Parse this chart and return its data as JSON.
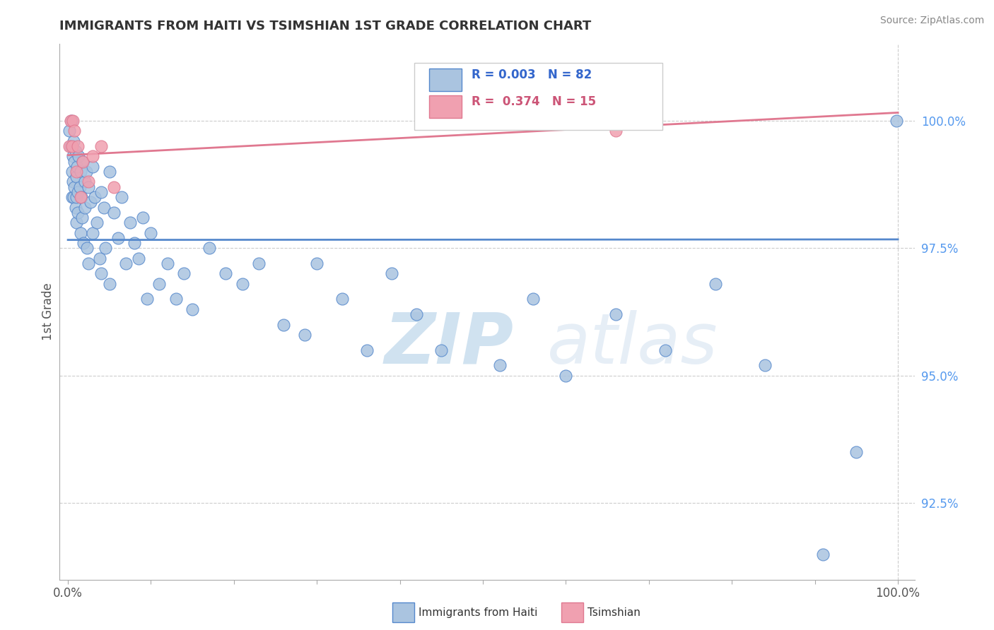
{
  "title": "IMMIGRANTS FROM HAITI VS TSIMSHIAN 1ST GRADE CORRELATION CHART",
  "source": "Source: ZipAtlas.com",
  "xlabel_haiti": "Immigrants from Haiti",
  "xlabel_tsimshian": "Tsimshian",
  "ylabel": "1st Grade",
  "xlim": [
    -1.0,
    102.0
  ],
  "ylim": [
    91.0,
    101.5
  ],
  "yticks": [
    92.5,
    95.0,
    97.5,
    100.0
  ],
  "xticks": [
    0.0,
    10.0,
    20.0,
    30.0,
    40.0,
    50.0,
    60.0,
    70.0,
    80.0,
    90.0,
    100.0
  ],
  "xtick_labels": [
    "0.0%",
    "",
    "",
    "",
    "",
    "",
    "",
    "",
    "",
    "",
    "100.0%"
  ],
  "ytick_labels": [
    "92.5%",
    "95.0%",
    "97.5%",
    "100.0%"
  ],
  "haiti_R": "0.003",
  "haiti_N": "82",
  "tsimshian_R": "0.374",
  "tsimshian_N": "15",
  "haiti_color": "#aac4e0",
  "tsimshian_color": "#f0a0b0",
  "haiti_trend_color": "#5588cc",
  "tsimshian_trend_color": "#e07890",
  "grid_color": "#cccccc",
  "haiti_x": [
    0.2,
    0.3,
    0.4,
    0.5,
    0.5,
    0.6,
    0.6,
    0.7,
    0.7,
    0.8,
    0.8,
    0.9,
    0.9,
    1.0,
    1.0,
    1.0,
    1.1,
    1.2,
    1.2,
    1.3,
    1.4,
    1.5,
    1.5,
    1.6,
    1.7,
    1.8,
    1.9,
    2.0,
    2.0,
    2.2,
    2.3,
    2.5,
    2.5,
    2.7,
    3.0,
    3.0,
    3.2,
    3.5,
    3.8,
    4.0,
    4.0,
    4.3,
    4.5,
    5.0,
    5.0,
    5.5,
    6.0,
    6.5,
    7.0,
    7.5,
    8.0,
    8.5,
    9.0,
    9.5,
    10.0,
    11.0,
    12.0,
    13.0,
    14.0,
    15.0,
    17.0,
    19.0,
    21.0,
    23.0,
    26.0,
    28.5,
    30.0,
    33.0,
    36.0,
    39.0,
    42.0,
    45.0,
    52.0,
    56.0,
    60.0,
    66.0,
    72.0,
    78.0,
    84.0,
    91.0,
    95.0,
    99.8
  ],
  "haiti_y": [
    99.8,
    99.5,
    100.0,
    99.0,
    98.5,
    99.3,
    98.8,
    99.6,
    98.5,
    99.2,
    98.7,
    98.3,
    99.4,
    98.9,
    98.5,
    98.0,
    99.1,
    98.6,
    98.2,
    99.3,
    98.7,
    99.0,
    97.8,
    98.5,
    98.1,
    99.2,
    97.6,
    98.8,
    98.3,
    99.0,
    97.5,
    98.7,
    97.2,
    98.4,
    99.1,
    97.8,
    98.5,
    98.0,
    97.3,
    98.6,
    97.0,
    98.3,
    97.5,
    99.0,
    96.8,
    98.2,
    97.7,
    98.5,
    97.2,
    98.0,
    97.6,
    97.3,
    98.1,
    96.5,
    97.8,
    96.8,
    97.2,
    96.5,
    97.0,
    96.3,
    97.5,
    97.0,
    96.8,
    97.2,
    96.0,
    95.8,
    97.2,
    96.5,
    95.5,
    97.0,
    96.2,
    95.5,
    95.2,
    96.5,
    95.0,
    96.2,
    95.5,
    96.8,
    95.2,
    91.5,
    93.5,
    100.0
  ],
  "tsimshian_x": [
    0.2,
    0.3,
    0.5,
    0.6,
    0.8,
    1.0,
    1.2,
    1.5,
    1.8,
    2.5,
    3.0,
    4.0,
    5.5,
    62.0,
    66.0
  ],
  "tsimshian_y": [
    99.5,
    100.0,
    99.5,
    100.0,
    99.8,
    99.0,
    99.5,
    98.5,
    99.2,
    98.8,
    99.3,
    99.5,
    98.7,
    100.0,
    99.8
  ]
}
